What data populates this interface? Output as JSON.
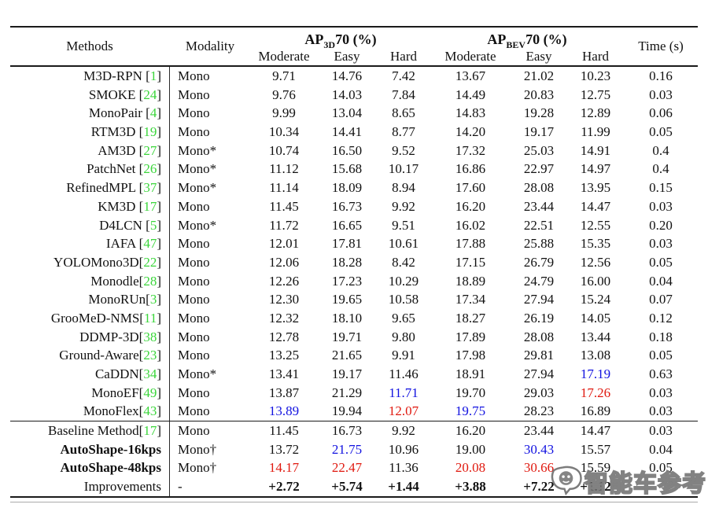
{
  "colors": {
    "blue": "#1212e0",
    "red": "#e0190f",
    "green": "#3cd63c"
  },
  "table": {
    "header": {
      "methods": "Methods",
      "modality": "Modality",
      "ap3d": {
        "prefix": "AP",
        "sub": "3D",
        "suffix": "70 (%)"
      },
      "apbev": {
        "prefix": "AP",
        "sub": "BEV",
        "suffix": "70 (%)"
      },
      "time": "Time (s)",
      "sub": [
        "Moderate",
        "Easy",
        "Hard",
        "Moderate",
        "Easy",
        "Hard"
      ]
    },
    "rows": [
      {
        "m": "M3D-RPN ",
        "cite": "1",
        "mod": "Mono",
        "v": [
          "9.71",
          "14.76",
          "7.42",
          "13.67",
          "21.02",
          "10.23",
          "0.16"
        ],
        "c": [
          "",
          "",
          "",
          "",
          "",
          "",
          ""
        ]
      },
      {
        "m": "SMOKE ",
        "cite": "24",
        "mod": "Mono",
        "v": [
          "9.76",
          "14.03",
          "7.84",
          "14.49",
          "20.83",
          "12.75",
          "0.03"
        ],
        "c": [
          "",
          "",
          "",
          "",
          "",
          "",
          ""
        ]
      },
      {
        "m": "MonoPair ",
        "cite": "4",
        "mod": "Mono",
        "v": [
          "9.99",
          "13.04",
          "8.65",
          "14.83",
          "19.28",
          "12.89",
          "0.06"
        ],
        "c": [
          "",
          "",
          "",
          "",
          "",
          "",
          ""
        ]
      },
      {
        "m": "RTM3D ",
        "cite": "19",
        "mod": "Mono",
        "v": [
          "10.34",
          "14.41",
          "8.77",
          "14.20",
          "19.17",
          "11.99",
          "0.05"
        ],
        "c": [
          "",
          "",
          "",
          "",
          "",
          "",
          ""
        ]
      },
      {
        "m": "AM3D ",
        "cite": "27",
        "mod": "Mono*",
        "v": [
          "10.74",
          "16.50",
          "9.52",
          "17.32",
          "25.03",
          "14.91",
          "0.4"
        ],
        "c": [
          "",
          "",
          "",
          "",
          "",
          "",
          ""
        ]
      },
      {
        "m": "PatchNet ",
        "cite": "26",
        "mod": "Mono*",
        "v": [
          "11.12",
          "15.68",
          "10.17",
          "16.86",
          "22.97",
          "14.97",
          "0.4"
        ],
        "c": [
          "",
          "",
          "",
          "",
          "",
          "",
          ""
        ]
      },
      {
        "m": "RefinedMPL ",
        "cite": "37",
        "mod": "Mono*",
        "v": [
          "11.14",
          "18.09",
          "8.94",
          "17.60",
          "28.08",
          "13.95",
          "0.15"
        ],
        "c": [
          "",
          "",
          "",
          "",
          "",
          "",
          ""
        ]
      },
      {
        "m": "KM3D ",
        "cite": "17",
        "mod": "Mono",
        "v": [
          "11.45",
          "16.73",
          "9.92",
          "16.20",
          "23.44",
          "14.47",
          "0.03"
        ],
        "c": [
          "",
          "",
          "",
          "",
          "",
          "",
          ""
        ]
      },
      {
        "m": "D4LCN ",
        "cite": "5",
        "mod": "Mono*",
        "v": [
          "11.72",
          "16.65",
          "9.51",
          "16.02",
          "22.51",
          "12.55",
          "0.20"
        ],
        "c": [
          "",
          "",
          "",
          "",
          "",
          "",
          ""
        ]
      },
      {
        "m": "IAFA ",
        "cite": "47",
        "mod": "Mono",
        "v": [
          "12.01",
          "17.81",
          "10.61",
          "17.88",
          "25.88",
          "15.35",
          "0.03"
        ],
        "c": [
          "",
          "",
          "",
          "",
          "",
          "",
          ""
        ]
      },
      {
        "m": "YOLOMono3D",
        "cite": "22",
        "mod": "Mono",
        "v": [
          "12.06",
          "18.28",
          "8.42",
          "17.15",
          "26.79",
          "12.56",
          "0.05"
        ],
        "c": [
          "",
          "",
          "",
          "",
          "",
          "",
          ""
        ]
      },
      {
        "m": "Monodle",
        "cite": "28",
        "mod": "Mono",
        "v": [
          "12.26",
          "17.23",
          "10.29",
          "18.89",
          "24.79",
          "16.00",
          "0.04"
        ],
        "c": [
          "",
          "",
          "",
          "",
          "",
          "",
          ""
        ]
      },
      {
        "m": "MonoRUn",
        "cite": "3",
        "mod": "Mono",
        "v": [
          "12.30",
          "19.65",
          "10.58",
          "17.34",
          "27.94",
          "15.24",
          "0.07"
        ],
        "c": [
          "",
          "",
          "",
          "",
          "",
          "",
          ""
        ]
      },
      {
        "m": "GrooMeD-NMS",
        "cite": "11",
        "mod": "Mono",
        "v": [
          "12.32",
          "18.10",
          "9.65",
          "18.27",
          "26.19",
          "14.05",
          "0.12"
        ],
        "c": [
          "",
          "",
          "",
          "",
          "",
          "",
          ""
        ]
      },
      {
        "m": "DDMP-3D",
        "cite": "38",
        "mod": "Mono",
        "v": [
          "12.78",
          "19.71",
          "9.80",
          "17.89",
          "28.08",
          "13.44",
          "0.18"
        ],
        "c": [
          "",
          "",
          "",
          "",
          "",
          "",
          ""
        ]
      },
      {
        "m": "Ground-Aware",
        "cite": "23",
        "mod": "Mono",
        "v": [
          "13.25",
          "21.65",
          "9.91",
          "17.98",
          "29.81",
          "13.08",
          "0.05"
        ],
        "c": [
          "",
          "",
          "",
          "",
          "",
          "",
          ""
        ]
      },
      {
        "m": "CaDDN",
        "cite": "34",
        "mod": "Mono*",
        "v": [
          "13.41",
          "19.17",
          "11.46",
          "18.91",
          "27.94",
          "17.19",
          "0.63"
        ],
        "c": [
          "",
          "",
          "",
          "",
          "",
          "b",
          ""
        ]
      },
      {
        "m": "MonoEF",
        "cite": "49",
        "mod": "Mono",
        "v": [
          "13.87",
          "21.29",
          "11.71",
          "19.70",
          "29.03",
          "17.26",
          "0.03"
        ],
        "c": [
          "",
          "",
          "b",
          "",
          "",
          "r",
          ""
        ]
      },
      {
        "m": "MonoFlex",
        "cite": "43",
        "mod": "Mono",
        "v": [
          "13.89",
          "19.94",
          "12.07",
          "19.75",
          "28.23",
          "16.89",
          "0.03"
        ],
        "c": [
          "b",
          "",
          "r",
          "b",
          "",
          "",
          ""
        ]
      },
      {
        "m": "Baseline Method",
        "cite": "17",
        "mod": "Mono",
        "sec": true,
        "v": [
          "11.45",
          "16.73",
          "9.92",
          "16.20",
          "23.44",
          "14.47",
          "0.03"
        ],
        "c": [
          "",
          "",
          "",
          "",
          "",
          "",
          ""
        ]
      },
      {
        "m": "AutoShape-16kps",
        "cite": null,
        "mod": "Mono†",
        "bm": true,
        "v": [
          "13.72",
          "21.75",
          "10.96",
          "19.00",
          "30.43",
          "15.57",
          "0.04"
        ],
        "c": [
          "",
          "b",
          "",
          "",
          "b",
          "",
          ""
        ]
      },
      {
        "m": "AutoShape-48kps",
        "cite": null,
        "mod": "Mono†",
        "bm": true,
        "v": [
          "14.17",
          "22.47",
          "11.36",
          "20.08",
          "30.66",
          "15.59",
          "0.05"
        ],
        "c": [
          "r",
          "r",
          "",
          "r",
          "r",
          "",
          ""
        ]
      },
      {
        "m": "Improvements",
        "cite": null,
        "mod": "-",
        "bv": true,
        "v": [
          "+2.72",
          "+5.74",
          "+1.44",
          "+3.88",
          "+7.22",
          "+1.12",
          ""
        ],
        "c": [
          "",
          "",
          "",
          "",
          "",
          "",
          ""
        ]
      }
    ]
  },
  "watermark": {
    "icon": "chat-bubble-face-logo",
    "text": "智能车参考"
  }
}
